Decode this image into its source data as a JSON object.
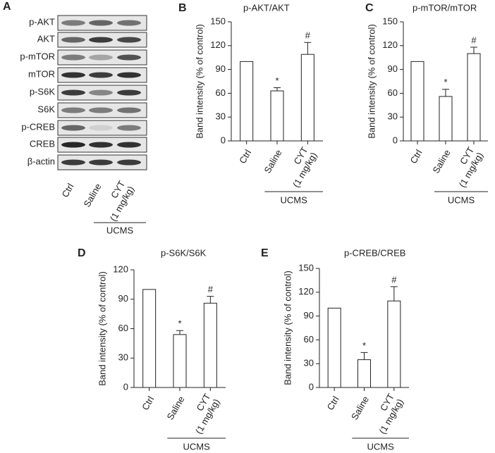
{
  "blot": {
    "panel": "A",
    "rows": [
      "p-AKT",
      "AKT",
      "p-mTOR",
      "mTOR",
      "p-S6K",
      "S6K",
      "p-CREB",
      "CREB",
      "β-actin"
    ],
    "lanes": [
      "Ctrl",
      "Saline",
      "CYT (1 mg/kg)"
    ],
    "group": "UCMS"
  },
  "chart_data": [
    {
      "type": "bar",
      "panel": "B",
      "title": "p-AKT/AKT",
      "ylabel": "Band intensity (% of control)",
      "categories": [
        "Ctrl",
        "Saline",
        "CYT (1 mg/kg)"
      ],
      "values": [
        100,
        63,
        109
      ],
      "errors": [
        null,
        4,
        15
      ],
      "markers": [
        null,
        "*",
        "#"
      ],
      "group": "UCMS",
      "color": "#ffffff",
      "ylim": [
        0,
        150
      ],
      "yticks": [
        0,
        30,
        60,
        90,
        120,
        150
      ]
    },
    {
      "type": "bar",
      "panel": "C",
      "title": "p-mTOR/mTOR",
      "ylabel": "Band intensity (% of control)",
      "categories": [
        "Ctrl",
        "Saline",
        "CYT (1 mg/kg)"
      ],
      "values": [
        100,
        56,
        110
      ],
      "errors": [
        null,
        9,
        8
      ],
      "markers": [
        null,
        "*",
        "#"
      ],
      "group": "UCMS",
      "color": "#ffffff",
      "ylim": [
        0,
        150
      ],
      "yticks": [
        0,
        30,
        60,
        90,
        120,
        150
      ]
    },
    {
      "type": "bar",
      "panel": "D",
      "title": "p-S6K/S6K",
      "ylabel": "Band intensity (% of control)",
      "categories": [
        "Ctrl",
        "Saline",
        "CYT (1 mg/kg)"
      ],
      "values": [
        100,
        54,
        86
      ],
      "errors": [
        null,
        4,
        7
      ],
      "markers": [
        null,
        "*",
        "#"
      ],
      "group": "UCMS",
      "color": "#ffffff",
      "ylim": [
        0,
        120
      ],
      "yticks": [
        0,
        30,
        60,
        90,
        120
      ]
    },
    {
      "type": "bar",
      "panel": "E",
      "title": "p-CREB/CREB",
      "ylabel": "Band intensity (% of control)",
      "categories": [
        "Ctrl",
        "Saline",
        "CYT (1 mg/kg)"
      ],
      "values": [
        100,
        35,
        109
      ],
      "errors": [
        null,
        9,
        18
      ],
      "markers": [
        null,
        "*",
        "#"
      ],
      "group": "UCMS",
      "color": "#ffffff",
      "ylim": [
        0,
        150
      ],
      "yticks": [
        0,
        30,
        60,
        90,
        120,
        150
      ]
    }
  ]
}
